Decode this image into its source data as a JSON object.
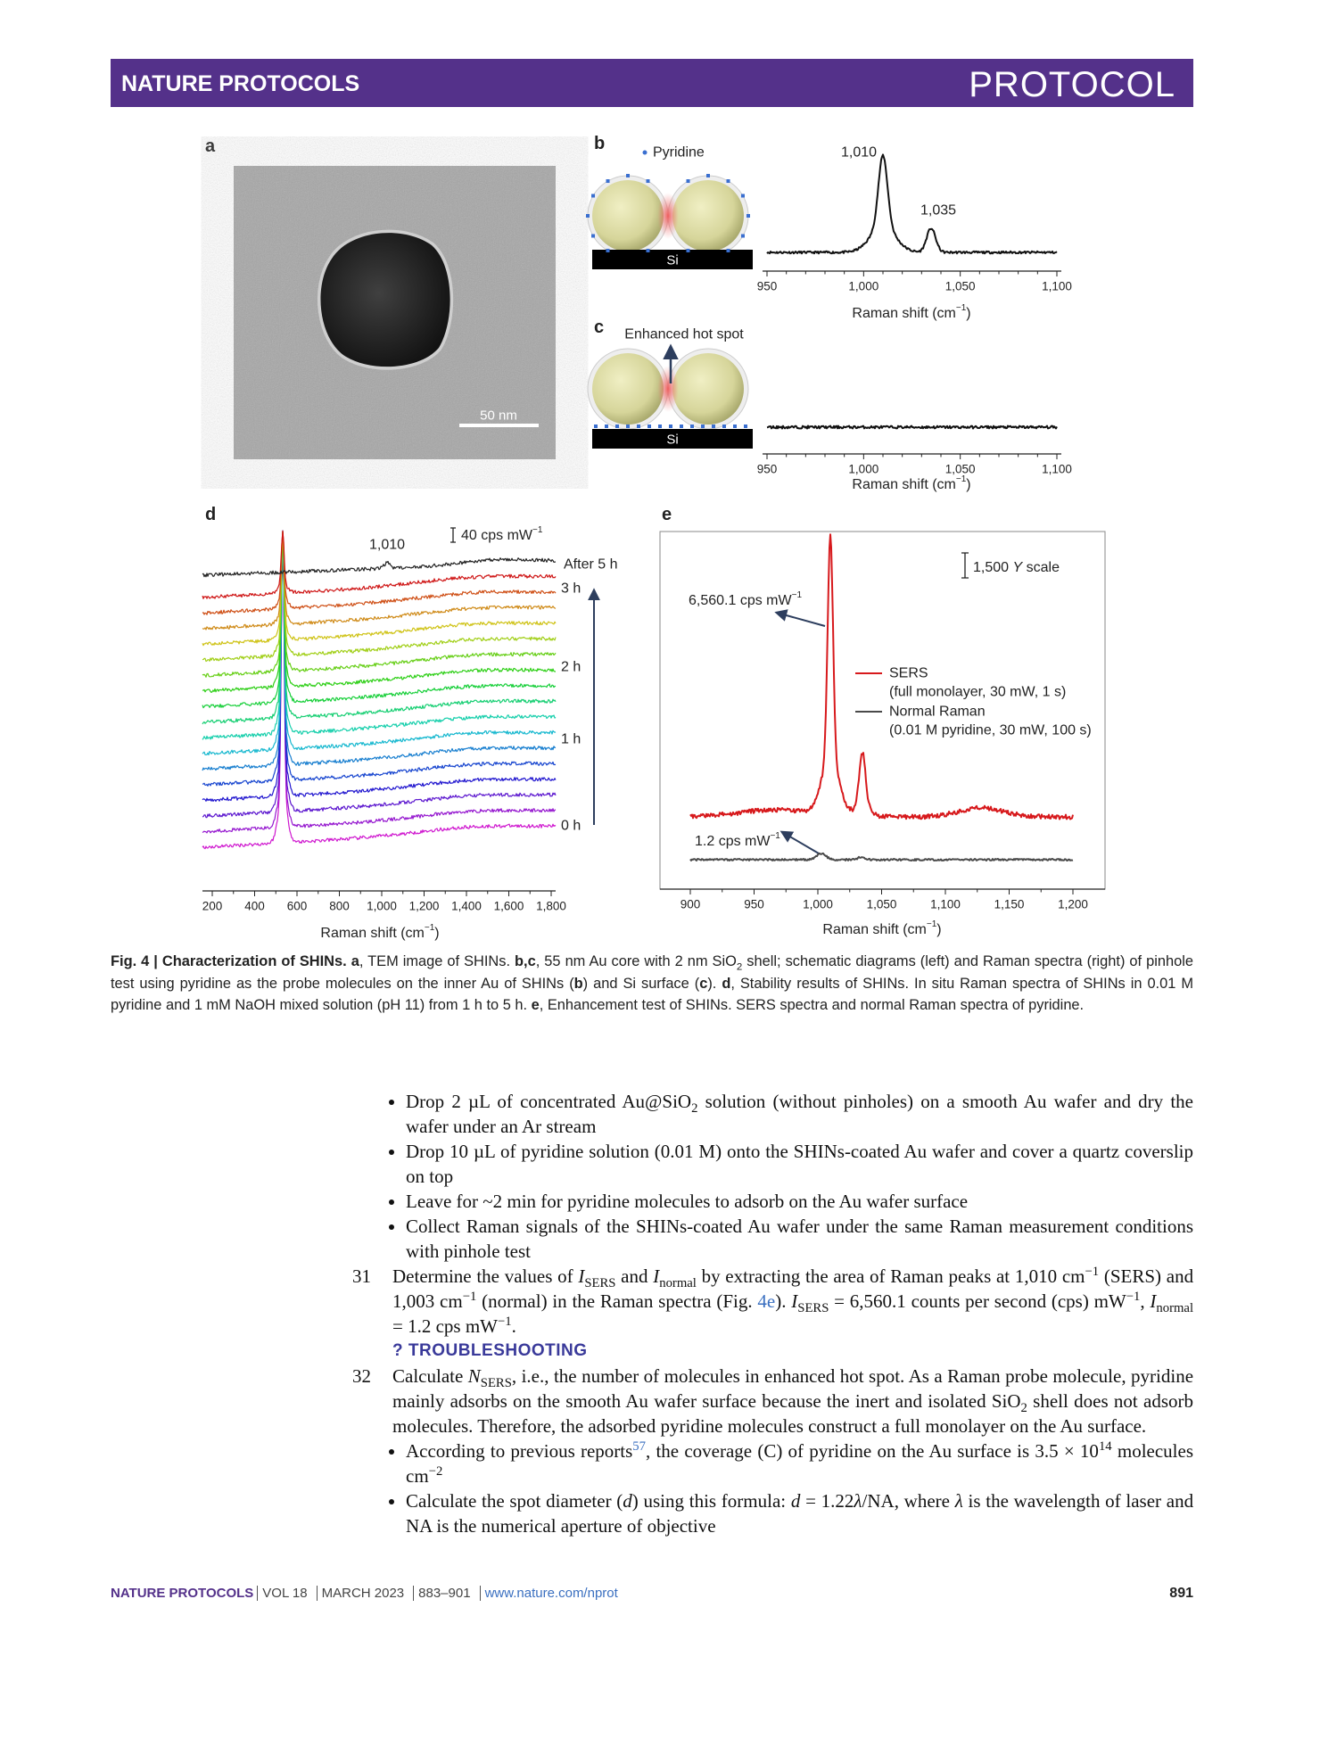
{
  "header": {
    "journal": "NATURE PROTOCOLS",
    "article_type": "PROTOCOL"
  },
  "figure": {
    "a": {
      "label": "a",
      "scale_bar": "50 nm"
    },
    "b": {
      "label": "b",
      "legend": "Pyridine",
      "substrate": "Si",
      "peaks": [
        "1,010",
        "1,035"
      ],
      "xticks": [
        "950",
        "1,000",
        "1,050",
        "1,100"
      ],
      "xlabel": [
        "Raman shift (cm",
        "−1",
        ")"
      ]
    },
    "c": {
      "label": "c",
      "annotation": "Enhanced hot spot",
      "substrate": "Si",
      "xticks": [
        "950",
        "1,000",
        "1,050",
        "1,100"
      ],
      "xlabel": [
        "Raman shift (cm",
        "−1",
        ")"
      ]
    },
    "d": {
      "label": "d",
      "peak": "1,010",
      "scale_bar": [
        "40 cps mW",
        "−1"
      ],
      "time_labels": [
        "After 5 h",
        "3 h",
        "2 h",
        "1 h",
        "0 h"
      ],
      "xticks": [
        "200",
        "400",
        "600",
        "800",
        "1,000",
        "1,200",
        "1,400",
        "1,600",
        "1,800"
      ],
      "xlabel": [
        "Raman shift (cm",
        "−1",
        ")"
      ]
    },
    "e": {
      "label": "e",
      "scale_bar": [
        "1,500",
        "Y",
        "scale"
      ],
      "sers_value": [
        "6,560.1 cps mW",
        "−1"
      ],
      "normal_value": [
        "1.2 cps mW",
        "−1"
      ],
      "legend": [
        {
          "name": "SERS",
          "detail": "(full monolayer, 30 mW, 1 s)",
          "color": "#d7191c"
        },
        {
          "name": "Normal Raman",
          "detail": "(0.01 M pyridine, 30 mW, 100 s)",
          "color": "#4a4a4a"
        }
      ],
      "xticks": [
        "900",
        "950",
        "1,000",
        "1,050",
        "1,100",
        "1,150",
        "1,200"
      ],
      "xlabel": [
        "Raman shift (cm",
        "−1",
        ")"
      ]
    }
  },
  "caption": [
    "Fig. 4 | Characterization of SHINs.",
    "a",
    ", TEM image of SHINs.",
    "b,c",
    ", 55 nm Au core with 2 nm SiO",
    "2",
    "shell; schematic diagrams (left) and Raman spectra (right) of pinhole test using pyridine as the probe molecules on the inner Au of SHINs (",
    "b",
    ") and Si surface (",
    "c",
    ").",
    "d",
    ", Stability results of SHINs. In situ Raman spectra of SHINs in 0.01 M pyridine and 1 mM NaOH mixed solution (pH 11) from 1 h to 5 h.",
    "e",
    ", Enhancement test of SHINs. SERS spectra and normal Raman spectra of pyridine."
  ],
  "body": {
    "bullets_1": [
      [
        "Drop 2 µL of concentrated Au@SiO",
        "2",
        "solution (without pinholes) on a smooth Au wafer and dry the wafer under an Ar stream"
      ],
      "Drop 10 µL of pyridine solution (0.01 M) onto the SHINs-coated Au wafer and cover a quartz coverslip on top",
      "Leave for ~2 min for pyridine molecules to adsorb on the Au wafer surface",
      "Collect Raman signals of the SHINs-coated Au wafer under the same Raman measurement conditions with pinhole test"
    ],
    "step_31": {
      "number": "31",
      "text": [
        "Determine the values of",
        "I",
        "SERS",
        "and",
        "I",
        "normal",
        "by extracting the area of Raman peaks at 1,010 cm",
        "−1",
        "(SERS) and 1,003 cm",
        "−1",
        "(normal) in the Raman spectra (Fig.",
        "4e",
        ").",
        "I",
        "SERS",
        "= 6,560.1 counts per second (cps) mW",
        "−1",
        ",",
        "I",
        "normal",
        "= 1.2 cps mW",
        "−1",
        "."
      ]
    },
    "troubleshooting": "? TROUBLESHOOTING",
    "step_32": {
      "number": "32",
      "text": [
        "Calculate",
        "N",
        "SERS",
        ", i.e., the number of molecules in enhanced hot spot. As a Raman probe molecule, pyridine mainly adsorbs on the smooth Au wafer surface because the inert and isolated SiO",
        "2",
        "shell does not adsorb molecules. Therefore, the adsorbed pyridine molecules construct a full monolayer on the Au surface."
      ]
    },
    "bullets_2": [
      [
        "According to previous reports",
        "57",
        ", the coverage (C) of pyridine on the Au surface is 3.5 × 10",
        "14",
        "molecules cm",
        "−2"
      ],
      [
        "Calculate the spot diameter (",
        "d",
        ") using this formula:",
        "d",
        "= 1.22",
        "λ",
        "/NA, where",
        "λ",
        "is the wavelength of laser and NA is the numerical aperture of objective"
      ]
    ]
  },
  "footer": {
    "journal": "NATURE PROTOCOLS",
    "parts": [
      "VOL 18",
      "MARCH 2023",
      "883–901",
      "www.nature.com/nprot"
    ],
    "page": "891"
  }
}
